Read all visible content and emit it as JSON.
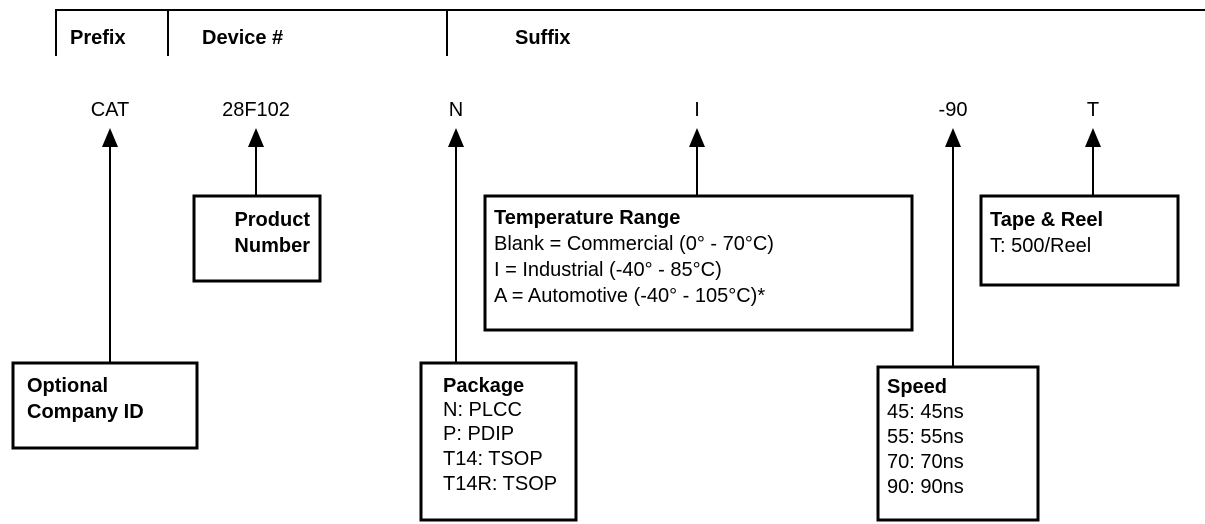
{
  "header": {
    "prefix": "Prefix",
    "device": "Device #",
    "suffix": "Suffix"
  },
  "codes": {
    "prefix": "CAT",
    "device": "28F102",
    "package": "N",
    "temperature": "I",
    "speed": "-90",
    "tape": "T"
  },
  "boxes": {
    "company": {
      "title": [
        "Optional",
        "Company ID"
      ]
    },
    "product": {
      "title": [
        "Product",
        "Number"
      ]
    },
    "temperature": {
      "title": "Temperature Range",
      "lines": [
        "Blank = Commercial (0° - 70°C)",
        "I = Industrial (-40° -  85°C)",
        "A = Automotive (-40° -  105°C)*"
      ]
    },
    "tape": {
      "title": "Tape & Reel",
      "lines": [
        "T: 500/Reel"
      ]
    },
    "package": {
      "title": "Package",
      "lines": [
        "N: PLCC",
        "P: PDIP",
        "T14: TSOP",
        "T14R: TSOP"
      ]
    },
    "speed": {
      "title": "Speed",
      "lines": [
        "45: 45ns",
        "55: 55ns",
        "70: 70ns",
        "90: 90ns"
      ]
    }
  }
}
